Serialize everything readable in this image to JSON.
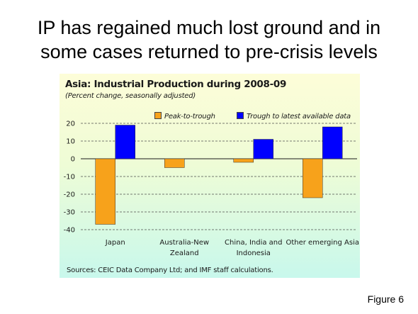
{
  "slide": {
    "title_lines": [
      "IP has regained much lost ground and in",
      "some cases returned to pre-crisis levels"
    ],
    "figure_label": "Figure 6"
  },
  "colors": {
    "peak_to_trough": "#f7a21b",
    "trough_to_latest": "#0000ff",
    "grid": "#4d4d4d"
  },
  "chart_data": {
    "type": "bar",
    "title": "Asia: Industrial Production during 2008-09",
    "subtitle": "(Percent change, seasonally adjusted)",
    "categories": [
      [
        "Japan"
      ],
      [
        "Australia-New",
        "Zealand"
      ],
      [
        "China, India and",
        "Indonesia"
      ],
      [
        "Other emerging Asia"
      ]
    ],
    "series": [
      {
        "name": "Peak-to-trough",
        "values": [
          -37,
          -5,
          -2,
          -22
        ]
      },
      {
        "name": "Trough to latest available data",
        "values": [
          19,
          0,
          11,
          18
        ]
      }
    ],
    "ylim": [
      -40,
      20
    ],
    "yticks": [
      20,
      10,
      0,
      -10,
      -20,
      -30,
      -40
    ],
    "grid": true,
    "legend": "top",
    "source": "Sources: CEIC Data Company Ltd; and IMF staff calculations."
  }
}
